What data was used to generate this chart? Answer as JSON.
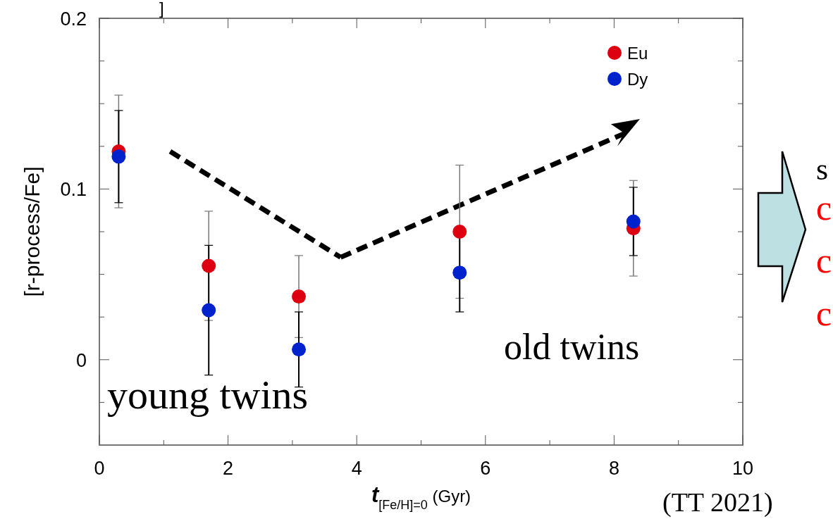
{
  "chart_data": {
    "type": "scatter",
    "ylabel": "[r-process/Fe]",
    "xlabel": "t$_{[Fe/H]=0}$ (Gyr)",
    "x": [
      0.3,
      1.7,
      3.1,
      5.6,
      8.3
    ],
    "series": [
      {
        "name": "Eu",
        "color": "#dd0011",
        "values": [
          0.122,
          0.055,
          0.037,
          0.075,
          0.077
        ],
        "errors": [
          0.033,
          0.032,
          0.024,
          0.039,
          0.028
        ]
      },
      {
        "name": "Dy",
        "color": "#0022cc",
        "values": [
          0.119,
          0.029,
          0.006,
          0.051,
          0.081
        ],
        "errors": [
          0.027,
          0.038,
          0.022,
          0.023,
          0.02
        ]
      }
    ],
    "xlim": [
      0,
      10
    ],
    "ylim": [
      -0.05,
      0.2
    ],
    "xticks": [
      0,
      {
        "value": 1,
        "label": null
      },
      2,
      {
        "value": 3,
        "label": null
      },
      4,
      {
        "value": 5,
        "label": null
      },
      6,
      {
        "value": 7,
        "label": null
      },
      8,
      {
        "value": 9,
        "label": null
      },
      10
    ],
    "yticks": [
      {
        "value": -0.025,
        "label": null
      },
      0,
      {
        "value": 0.025,
        "label": null
      },
      {
        "value": 0.05,
        "label": null
      },
      {
        "value": 0.075,
        "label": null
      },
      0.1,
      {
        "value": 0.125,
        "label": null
      },
      {
        "value": 0.15,
        "label": null
      },
      {
        "value": 0.175,
        "label": null
      },
      0.2
    ],
    "marker": "circle",
    "legend": "top right",
    "grid": false,
    "annotations": [
      "young twins",
      "old twins",
      "(TT 2021)",
      "s",
      "c",
      "c",
      "c",
      "]"
    ]
  }
}
